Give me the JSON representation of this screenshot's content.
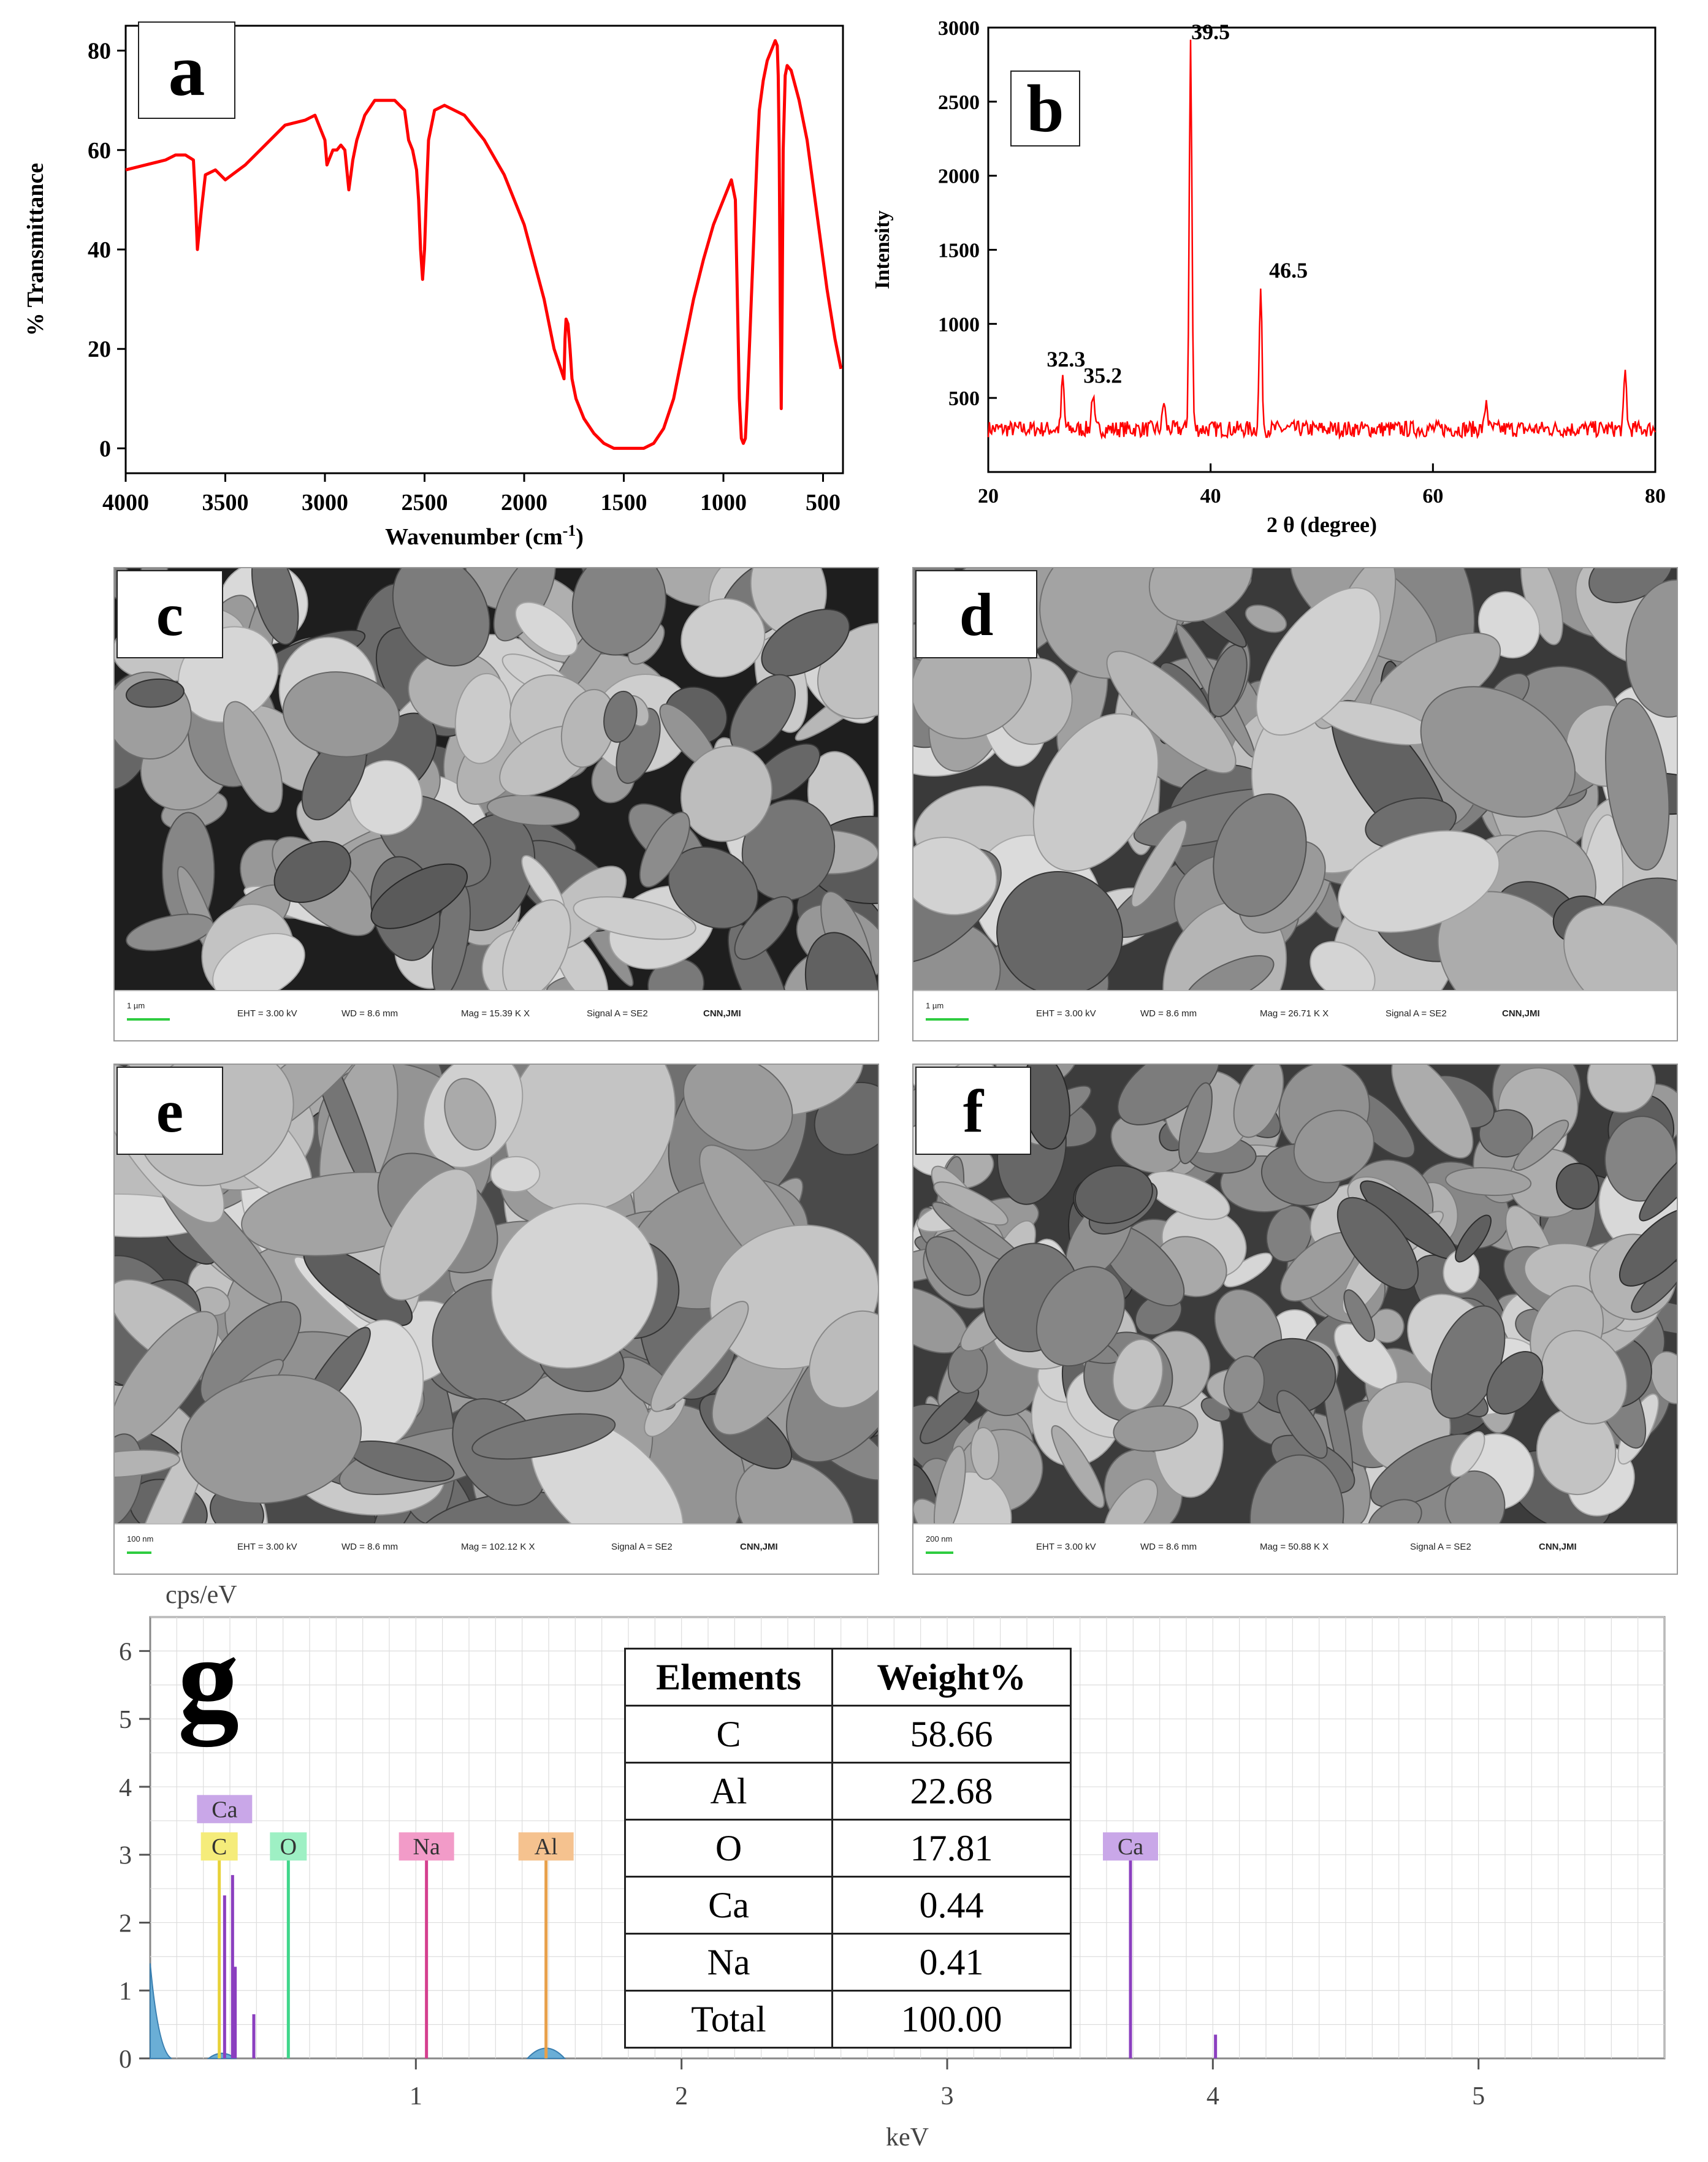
{
  "chart_data": [
    {
      "panel": "a",
      "type": "line",
      "xlabel": "Wavenumber (cm",
      "xlabel_sup": "-1",
      "xlabel_end": ")",
      "ylabel": "% Transmittance",
      "xlim": [
        4000,
        400
      ],
      "ylim": [
        -5,
        85
      ],
      "x_ticks": [
        "4000",
        "3500",
        "3000",
        "2500",
        "2000",
        "1500",
        "1000",
        "500"
      ],
      "y_ticks": [
        "0",
        "20",
        "40",
        "60",
        "80"
      ],
      "color": "#ff0000",
      "series": [
        {
          "x": [
            4000,
            3900,
            3800,
            3750,
            3700,
            3660,
            3650,
            3640,
            3620,
            3600,
            3550,
            3500,
            3400,
            3300,
            3200,
            3100,
            3050,
            3000,
            2990,
            2980,
            2960,
            2940,
            2920,
            2900,
            2880,
            2870,
            2860,
            2840,
            2800,
            2750,
            2700,
            2650,
            2600,
            2580,
            2560,
            2540,
            2530,
            2520,
            2510,
            2500,
            2490,
            2480,
            2450,
            2400,
            2300,
            2200,
            2100,
            2000,
            1900,
            1850,
            1800,
            1795,
            1790,
            1780,
            1770,
            1760,
            1740,
            1700,
            1650,
            1600,
            1550,
            1500,
            1450,
            1400,
            1350,
            1300,
            1250,
            1200,
            1150,
            1100,
            1050,
            1000,
            960,
            940,
            930,
            920,
            910,
            900,
            890,
            880,
            870,
            860,
            850,
            840,
            830,
            820,
            800,
            780,
            760,
            740,
            730,
            725,
            720,
            715,
            710,
            705,
            700,
            690,
            680,
            660,
            640,
            620,
            600,
            580,
            560,
            540,
            520,
            500,
            480,
            460,
            440,
            420,
            410
          ],
          "y": [
            56,
            57,
            58,
            59,
            59,
            58,
            50,
            40,
            48,
            55,
            56,
            54,
            57,
            61,
            65,
            66,
            67,
            62,
            57,
            58,
            60,
            60,
            61,
            60,
            52,
            55,
            58,
            62,
            67,
            70,
            70,
            70,
            68,
            62,
            60,
            56,
            50,
            40,
            34,
            40,
            52,
            62,
            68,
            69,
            67,
            62,
            55,
            45,
            30,
            20,
            14,
            22,
            26,
            25,
            20,
            14,
            10,
            6,
            3,
            1,
            0,
            0,
            0,
            0,
            1,
            4,
            10,
            20,
            30,
            38,
            45,
            50,
            54,
            50,
            30,
            10,
            2,
            1,
            2,
            10,
            20,
            30,
            40,
            50,
            60,
            68,
            74,
            78,
            80,
            82,
            81,
            75,
            60,
            30,
            8,
            30,
            60,
            75,
            77,
            76,
            73,
            70,
            66,
            62,
            56,
            50,
            44,
            38,
            32,
            27,
            22,
            18,
            16
          ]
        }
      ]
    },
    {
      "panel": "b",
      "type": "line",
      "xlabel": "2 θ (degree)",
      "ylabel": "Intensity",
      "xlim": [
        20,
        80
      ],
      "ylim": [
        0,
        3000
      ],
      "x_ticks": [
        "20",
        "40",
        "60",
        "80"
      ],
      "y_ticks": [
        "500",
        "1000",
        "1500",
        "2000",
        "2500",
        "3000"
      ],
      "color": "#ff0000",
      "baseline": 290,
      "peaks": [
        {
          "x": 26.7,
          "y": 640
        },
        {
          "x": 29.4,
          "y": 530
        },
        {
          "x": 35.8,
          "y": 480
        },
        {
          "x": 38.2,
          "y": 2900
        },
        {
          "x": 44.5,
          "y": 1240
        },
        {
          "x": 64.8,
          "y": 490
        },
        {
          "x": 77.3,
          "y": 670
        }
      ],
      "annotations": [
        {
          "text": "32.3",
          "x": 27.0,
          "y": 670
        },
        {
          "text": "35.2",
          "x": 30.3,
          "y": 560
        },
        {
          "text": "39.5",
          "x": 40.0,
          "y": 2880
        },
        {
          "text": "46.5",
          "x": 47.0,
          "y": 1270
        }
      ]
    },
    {
      "panel": "g",
      "type": "bar",
      "xlabel": "keV",
      "ylabel": "cps/eV",
      "xlim": [
        0,
        5.7
      ],
      "ylim": [
        0,
        6.5
      ],
      "x_ticks": [
        "1",
        "2",
        "3",
        "4",
        "5"
      ],
      "y_ticks": [
        "0",
        "1",
        "2",
        "3",
        "4",
        "5",
        "6"
      ],
      "lines": [
        {
          "x": 0.26,
          "y": 3.0,
          "color": "#e8d23a"
        },
        {
          "x": 0.28,
          "y": 2.4,
          "color": "#8b3fbf"
        },
        {
          "x": 0.31,
          "y": 2.7,
          "color": "#8b3fbf"
        },
        {
          "x": 0.32,
          "y": 1.35,
          "color": "#8b3fbf"
        },
        {
          "x": 0.39,
          "y": 0.65,
          "color": "#8b3fbf"
        },
        {
          "x": 0.52,
          "y": 3.0,
          "color": "#3fd68a"
        },
        {
          "x": 1.04,
          "y": 3.0,
          "color": "#d43f8f"
        },
        {
          "x": 1.49,
          "y": 3.0,
          "color": "#e8a04a"
        },
        {
          "x": 3.69,
          "y": 3.0,
          "color": "#8b3fbf"
        },
        {
          "x": 3.69,
          "y": 1.35,
          "color": "#8b3fbf"
        },
        {
          "x": 4.01,
          "y": 0.35,
          "color": "#8b3fbf"
        }
      ],
      "element_tags": [
        {
          "text": "Ca",
          "x": 0.28,
          "y": 3.5,
          "color": "#c9a7e8"
        },
        {
          "text": "C",
          "x": 0.26,
          "y": 2.95,
          "color": "#f5ec7a"
        },
        {
          "text": "O",
          "x": 0.52,
          "y": 2.95,
          "color": "#9ef0c4"
        },
        {
          "text": "Na",
          "x": 1.04,
          "y": 2.95,
          "color": "#f29bc8"
        },
        {
          "text": "Al",
          "x": 1.49,
          "y": 2.95,
          "color": "#f5c28f"
        },
        {
          "text": "Ca",
          "x": 3.69,
          "y": 2.95,
          "color": "#c9a7e8"
        }
      ]
    }
  ],
  "panel_labels": {
    "a": "a",
    "b": "b",
    "c": "c",
    "d": "d",
    "e": "e",
    "f": "f",
    "g": "g"
  },
  "sem": {
    "c": {
      "scale": "1 µm",
      "eht": "EHT = 3.00 kV",
      "wd": "WD = 8.6 mm",
      "mag": "Mag = 15.39 K X",
      "signal": "Signal A = SE2",
      "inst": "CNN,JMI"
    },
    "d": {
      "scale": "1 µm",
      "eht": "EHT = 3.00 kV",
      "wd": "WD = 8.6 mm",
      "mag": "Mag = 26.71 K X",
      "signal": "Signal A = SE2",
      "inst": "CNN,JMI"
    },
    "e": {
      "scale": "100 nm",
      "eht": "EHT = 3.00 kV",
      "wd": "WD = 8.6 mm",
      "mag": "Mag = 102.12 K X",
      "signal": "Signal A = SE2",
      "inst": "CNN,JMI"
    },
    "f": {
      "scale": "200 nm",
      "eht": "EHT = 3.00 kV",
      "wd": "WD = 8.6 mm",
      "mag": "Mag = 50.88 K X",
      "signal": "Signal A = SE2",
      "inst": "CNN,JMI"
    }
  },
  "eds_table": {
    "headers": [
      "Elements",
      "Weight%"
    ],
    "rows": [
      [
        "C",
        "58.66"
      ],
      [
        "Al",
        "22.68"
      ],
      [
        "O",
        "17.81"
      ],
      [
        "Ca",
        "0.44"
      ],
      [
        "Na",
        "0.41"
      ],
      [
        "Total",
        "100.00"
      ]
    ]
  }
}
